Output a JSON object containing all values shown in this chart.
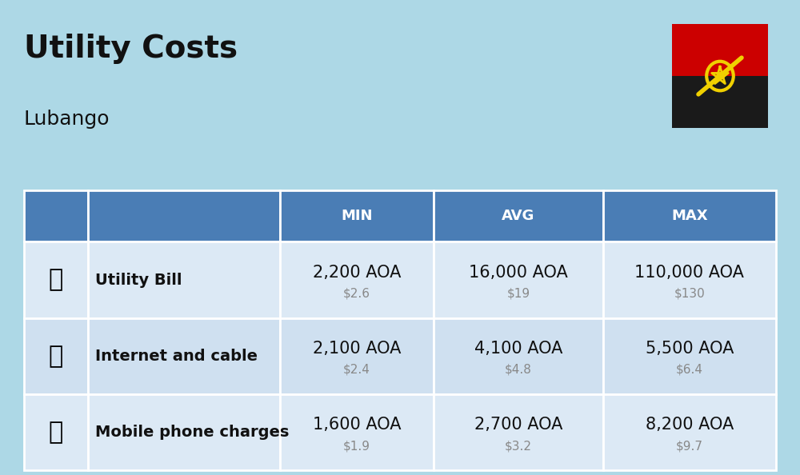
{
  "title": "Utility Costs",
  "subtitle": "Lubango",
  "background_color": "#add8e6",
  "header_bg_color": "#4a7db5",
  "header_text_color": "#ffffff",
  "row_bg_color_1": "#dce9f5",
  "row_bg_color_2": "#cfe0f0",
  "table_border_color": "#ffffff",
  "columns": [
    "",
    "",
    "MIN",
    "AVG",
    "MAX"
  ],
  "rows": [
    {
      "icon": "utility",
      "label": "Utility Bill",
      "min_aoa": "2,200 AOA",
      "min_usd": "$2.6",
      "avg_aoa": "16,000 AOA",
      "avg_usd": "$19",
      "max_aoa": "110,000 AOA",
      "max_usd": "$130"
    },
    {
      "icon": "internet",
      "label": "Internet and cable",
      "min_aoa": "2,100 AOA",
      "min_usd": "$2.4",
      "avg_aoa": "4,100 AOA",
      "avg_usd": "$4.8",
      "max_aoa": "5,500 AOA",
      "max_usd": "$6.4"
    },
    {
      "icon": "mobile",
      "label": "Mobile phone charges",
      "min_aoa": "1,600 AOA",
      "min_usd": "$1.9",
      "avg_aoa": "2,700 AOA",
      "avg_usd": "$3.2",
      "max_aoa": "8,200 AOA",
      "max_usd": "$9.7"
    }
  ],
  "aoa_fontsize": 15,
  "usd_fontsize": 11,
  "label_fontsize": 14,
  "header_fontsize": 13,
  "title_fontsize": 28,
  "subtitle_fontsize": 18,
  "flag_colors": {
    "red": "#cc0000",
    "black": "#1a1a1a",
    "yellow": "#f0d000"
  }
}
